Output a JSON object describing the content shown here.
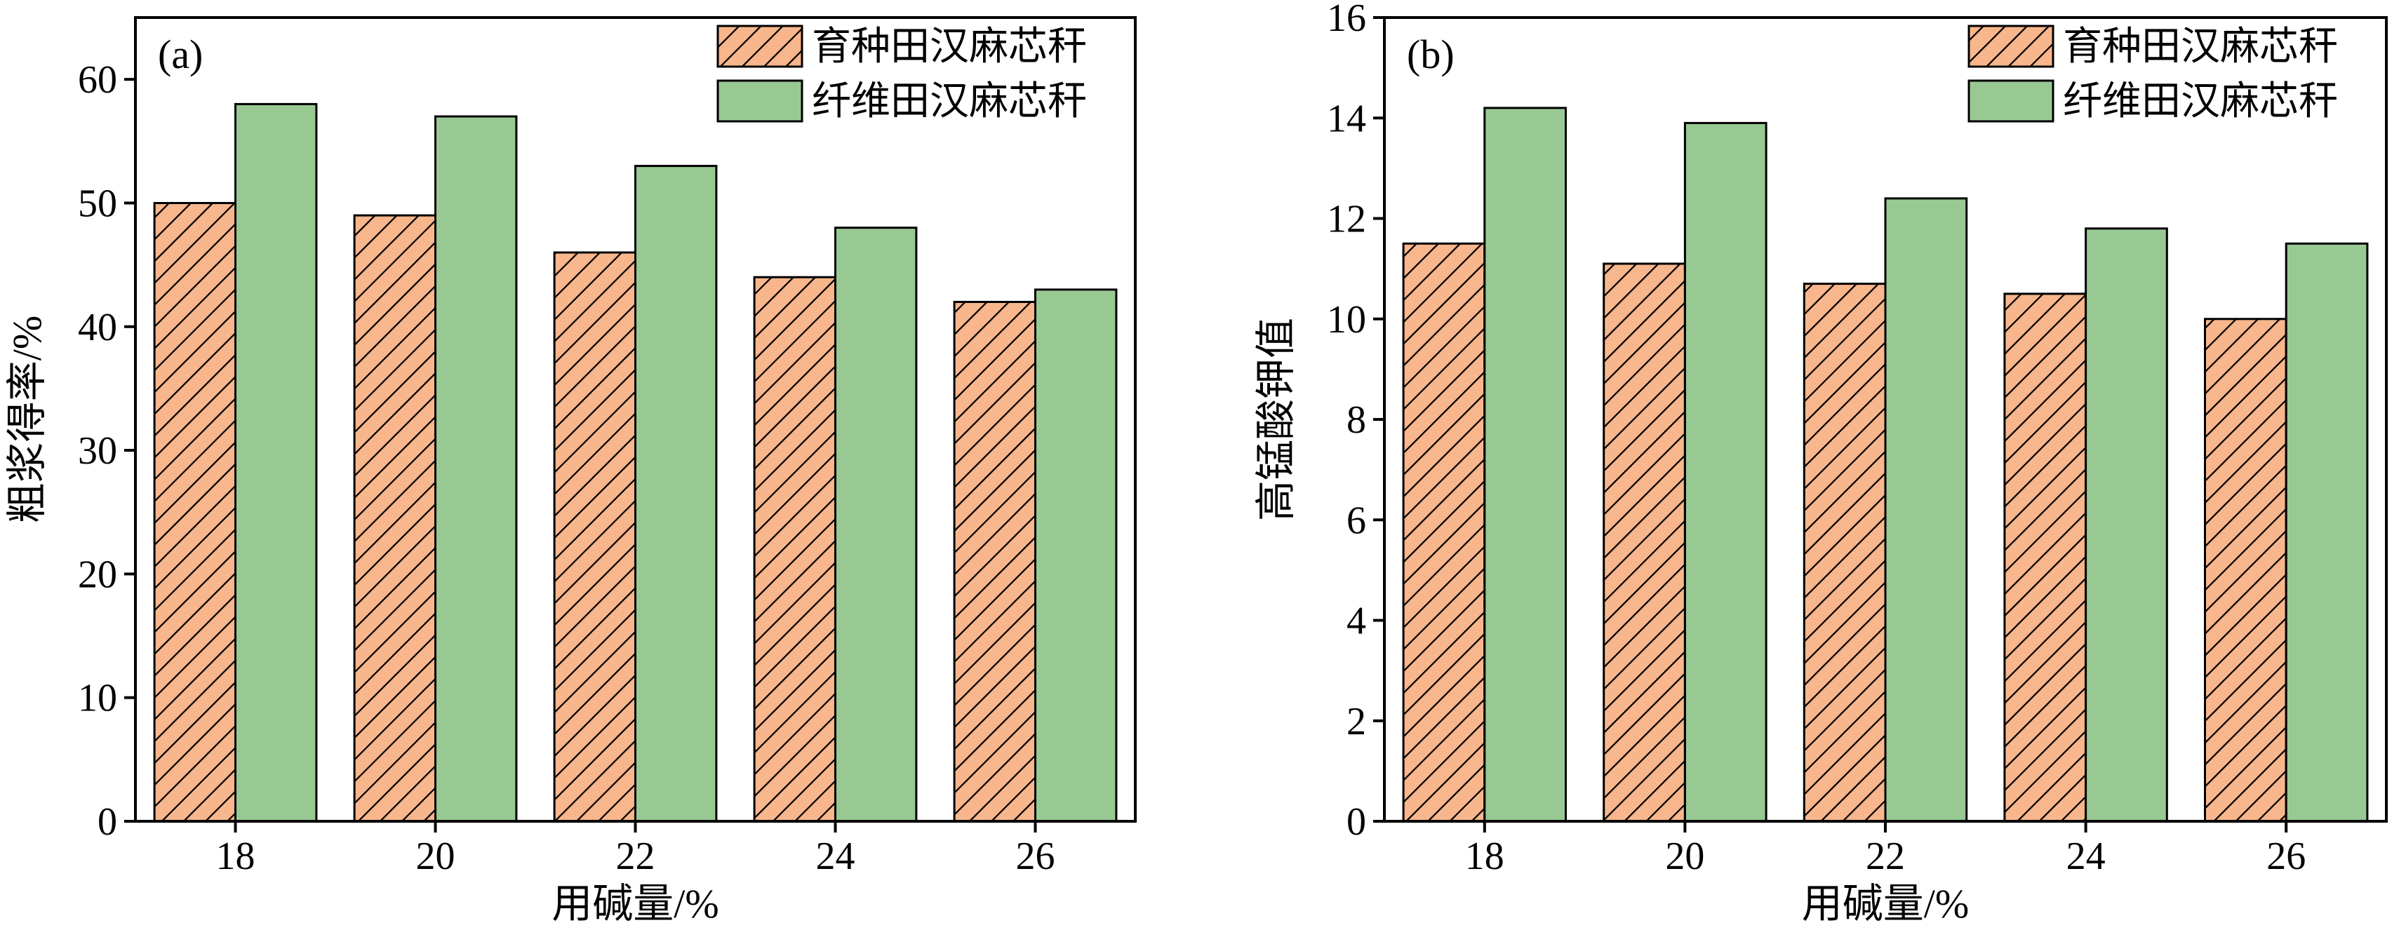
{
  "chart_data": [
    {
      "type": "bar",
      "panel_label": "(a)",
      "categories": [
        "18",
        "20",
        "22",
        "24",
        "26"
      ],
      "series": [
        {
          "name": "育种田汉麻芯秆",
          "values": [
            50,
            49,
            46,
            44,
            42
          ],
          "color": "#f8b68c",
          "pattern": "hatch"
        },
        {
          "name": "纤维田汉麻芯秆",
          "values": [
            58,
            57,
            53,
            48,
            43
          ],
          "color": "#98c993",
          "pattern": "solid"
        }
      ],
      "xlabel": "用碱量/%",
      "ylabel": "粗浆得率/%",
      "ylim": [
        0,
        65
      ],
      "yticks": [
        "0",
        "10",
        "20",
        "30",
        "40",
        "50",
        "60"
      ],
      "legend": "top-right",
      "grid": false
    },
    {
      "type": "bar",
      "panel_label": "(b)",
      "categories": [
        "18",
        "20",
        "22",
        "24",
        "26"
      ],
      "series": [
        {
          "name": "育种田汉麻芯秆",
          "values": [
            11.5,
            11.1,
            10.7,
            10.5,
            10.0
          ],
          "color": "#f8b68c",
          "pattern": "hatch"
        },
        {
          "name": "纤维田汉麻芯秆",
          "values": [
            14.2,
            13.9,
            12.4,
            11.8,
            11.5
          ],
          "color": "#98c993",
          "pattern": "solid"
        }
      ],
      "xlabel": "用碱量/%",
      "ylabel": "高锰酸钾值",
      "ylim": [
        0,
        16
      ],
      "yticks": [
        "0",
        "2",
        "4",
        "6",
        "8",
        "10",
        "12",
        "14",
        "16"
      ],
      "legend": "top-right",
      "grid": false
    }
  ]
}
